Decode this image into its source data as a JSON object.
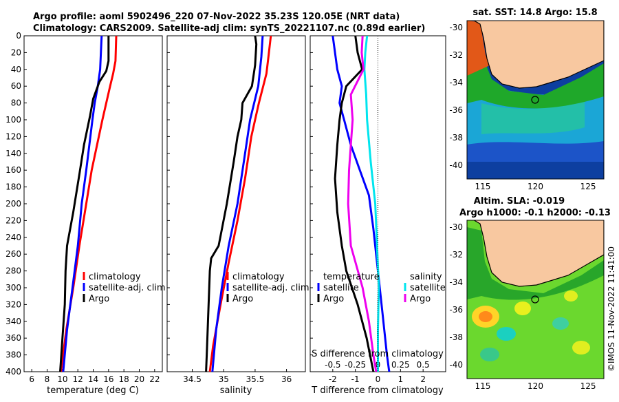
{
  "title": {
    "line1": "Argo profile: aoml 5902496_220 07-Nov-2022 35.23S 120.05E (NRT data)",
    "line2": "Climatology: CARS2009. Satellite-adj clim: synTS_20221107.nc (0.89d earlier)"
  },
  "colors": {
    "climatology": "#ff0000",
    "satellite": "#0000ff",
    "argo": "#000000",
    "s_satellite": "#00e5ee",
    "s_argo": "#ee00ee",
    "land": "#f8c8a0"
  },
  "chart_data": [
    {
      "type": "line",
      "panel": "temperature",
      "xlabel": "temperature (deg C)",
      "ylabel": "",
      "xlim": [
        5,
        23
      ],
      "ylim": [
        400,
        0
      ],
      "xticks": [
        "6",
        "8",
        "10",
        "12",
        "14",
        "16",
        "18",
        "20",
        "22"
      ],
      "yticks": [
        "0",
        "20",
        "40",
        "60",
        "80",
        "100",
        "120",
        "140",
        "160",
        "180",
        "200",
        "220",
        "240",
        "260",
        "280",
        "300",
        "320",
        "340",
        "360",
        "380",
        "400"
      ],
      "legend": [
        "climatology",
        "satellite-adj. clim",
        "Argo"
      ],
      "series": [
        {
          "name": "climatology",
          "depth": [
            0,
            30,
            45,
            60,
            80,
            100,
            130,
            160,
            200,
            250,
            300,
            350,
            400
          ],
          "values": [
            17.0,
            16.9,
            16.6,
            16.2,
            15.7,
            15.2,
            14.5,
            13.8,
            13.1,
            12.2,
            11.4,
            10.5,
            9.8
          ]
        },
        {
          "name": "satellite-adj. clim",
          "depth": [
            0,
            20,
            40,
            60,
            80,
            100,
            130,
            160,
            200,
            250,
            300,
            350,
            400
          ],
          "values": [
            15.1,
            15.0,
            14.9,
            14.6,
            14.2,
            13.9,
            13.5,
            13.1,
            12.5,
            12.0,
            11.3,
            10.6,
            10.1
          ]
        },
        {
          "name": "Argo",
          "depth": [
            0,
            30,
            42,
            55,
            75,
            95,
            130,
            165,
            210,
            250,
            280,
            320,
            360,
            400
          ],
          "values": [
            16.0,
            16.0,
            15.7,
            14.8,
            14.0,
            13.6,
            12.8,
            12.2,
            11.4,
            10.6,
            10.4,
            10.3,
            10.0,
            9.7
          ]
        }
      ]
    },
    {
      "type": "line",
      "panel": "salinity",
      "xlabel": "salinity",
      "ylabel": "",
      "xlim": [
        34.1,
        36.3
      ],
      "ylim": [
        400,
        0
      ],
      "xticks": [
        "34.5",
        "35",
        "35.5",
        "36"
      ],
      "legend": [
        "climatology",
        "satellite-adj. clim",
        "Argo"
      ],
      "series": [
        {
          "name": "climatology",
          "depth": [
            0,
            20,
            45,
            80,
            120,
            170,
            220,
            270,
            320,
            370,
            400
          ],
          "values": [
            35.75,
            35.72,
            35.68,
            35.56,
            35.44,
            35.34,
            35.22,
            35.08,
            34.95,
            34.83,
            34.78
          ]
        },
        {
          "name": "satellite-adj. clim",
          "depth": [
            0,
            25,
            60,
            100,
            150,
            200,
            250,
            300,
            350,
            400
          ],
          "values": [
            35.62,
            35.6,
            35.55,
            35.42,
            35.32,
            35.22,
            35.08,
            34.97,
            34.88,
            34.82
          ]
        },
        {
          "name": "Argo",
          "depth": [
            0,
            10,
            35,
            60,
            80,
            100,
            120,
            150,
            200,
            250,
            265,
            280,
            300,
            340,
            380,
            400
          ],
          "values": [
            35.5,
            35.52,
            35.5,
            35.45,
            35.3,
            35.28,
            35.22,
            35.16,
            35.05,
            34.92,
            34.8,
            34.78,
            34.77,
            34.75,
            34.73,
            34.72
          ]
        }
      ]
    },
    {
      "type": "line",
      "panel": "difference",
      "xlabel": "T difference from climatology",
      "xlabel_top": "S difference from climatology",
      "xlim": [
        -3,
        3
      ],
      "ylim": [
        400,
        0
      ],
      "xticks": [
        "-2",
        "-1",
        "0",
        "1",
        "2"
      ],
      "s_ticks": [
        "-0.5",
        "-0.25",
        "0",
        "0.25",
        "0.5"
      ],
      "legend_temperature": {
        "heading": "temperature",
        "items": [
          "satellite",
          "Argo"
        ]
      },
      "legend_salinity": {
        "heading": "salinity",
        "items": [
          "satellite",
          "Argo"
        ]
      },
      "series": [
        {
          "name": "T satellite",
          "depth": [
            0,
            20,
            40,
            60,
            80,
            100,
            130,
            160,
            190,
            230,
            280,
            330,
            380,
            400
          ],
          "values": [
            -2.0,
            -1.9,
            -1.8,
            -1.6,
            -1.7,
            -1.5,
            -1.2,
            -0.8,
            -0.4,
            -0.2,
            0.0,
            0.2,
            0.4,
            0.5
          ]
        },
        {
          "name": "T Argo",
          "depth": [
            0,
            20,
            40,
            60,
            80,
            100,
            130,
            170,
            210,
            250,
            280,
            320,
            360,
            400
          ],
          "values": [
            -1.0,
            -0.9,
            -0.7,
            -1.4,
            -1.6,
            -1.7,
            -1.8,
            -1.9,
            -1.8,
            -1.6,
            -1.4,
            -0.9,
            -0.5,
            -0.2
          ]
        },
        {
          "name": "S satellite",
          "depth": [
            0,
            20,
            40,
            70,
            100,
            150,
            200,
            250,
            300,
            350,
            400
          ],
          "values": [
            -0.12,
            -0.14,
            -0.15,
            -0.13,
            -0.12,
            -0.08,
            -0.03,
            -0.01,
            0.01,
            0.0,
            0.0
          ]
        },
        {
          "name": "S Argo",
          "depth": [
            0,
            20,
            40,
            70,
            100,
            130,
            160,
            200,
            250,
            300,
            340,
            380,
            400
          ],
          "values": [
            -0.17,
            -0.18,
            -0.16,
            -0.3,
            -0.28,
            -0.3,
            -0.32,
            -0.33,
            -0.3,
            -0.17,
            -0.1,
            -0.05,
            -0.02
          ]
        }
      ]
    },
    {
      "type": "heatmap",
      "panel": "sst-map",
      "title": "sat. SST: 14.8 Argo: 15.8",
      "xticks": [
        "115",
        "120",
        "125"
      ],
      "yticks": [
        "-30",
        "-32",
        "-34",
        "-36",
        "-38",
        "-40"
      ],
      "xlim": [
        113.5,
        126.5
      ],
      "ylim": [
        -41,
        -29.5
      ],
      "marker": {
        "lon": 120.05,
        "lat": -35.23
      }
    },
    {
      "type": "heatmap",
      "panel": "sla-map",
      "title": "Altim. SLA: -0.019",
      "subtitle": "Argo h1000: -0.1 h2000: -0.13",
      "xticks": [
        "115",
        "120",
        "125"
      ],
      "yticks": [
        "-30",
        "-32",
        "-34",
        "-36",
        "-38",
        "-40"
      ],
      "xlim": [
        113.5,
        126.5
      ],
      "ylim": [
        -41,
        -29.5
      ],
      "marker": {
        "lon": 120.05,
        "lat": -35.23
      }
    }
  ],
  "credit": "©IMOS 11-Nov-2022 11:41:00"
}
